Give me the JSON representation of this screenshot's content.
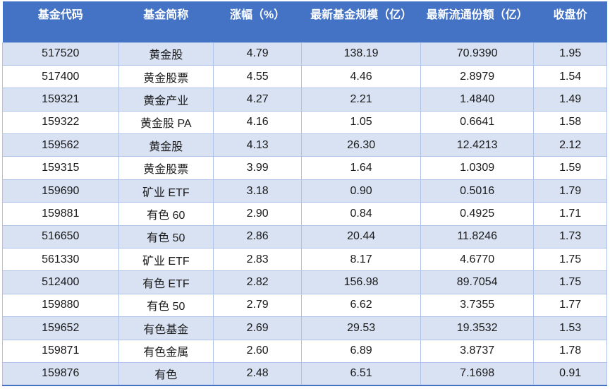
{
  "chart_data": {
    "type": "table",
    "columns": [
      "基金代码",
      "基金简称",
      "涨幅（%）",
      "最新基金规模（亿）",
      "最新流通份额（亿）",
      "收盘价"
    ],
    "rows": [
      [
        "517520",
        "黄金股",
        "4.79",
        "138.19",
        "70.9390",
        "1.95"
      ],
      [
        "517400",
        "黄金股票",
        "4.55",
        "4.46",
        "2.8979",
        "1.54"
      ],
      [
        "159321",
        "黄金产业",
        "4.27",
        "2.21",
        "1.4840",
        "1.49"
      ],
      [
        "159322",
        "黄金股 PA",
        "4.16",
        "1.05",
        "0.6641",
        "1.58"
      ],
      [
        "159562",
        "黄金股",
        "4.13",
        "26.30",
        "12.4213",
        "2.12"
      ],
      [
        "159315",
        "黄金股票",
        "3.99",
        "1.64",
        "1.0309",
        "1.59"
      ],
      [
        "159690",
        "矿业 ETF",
        "3.18",
        "0.90",
        "0.5016",
        "1.79"
      ],
      [
        "159881",
        "有色 60",
        "2.90",
        "0.84",
        "0.4925",
        "1.71"
      ],
      [
        "516650",
        "有色 50",
        "2.86",
        "20.44",
        "11.8246",
        "1.73"
      ],
      [
        "561330",
        "矿业 ETF",
        "2.83",
        "8.17",
        "4.6770",
        "1.75"
      ],
      [
        "512400",
        "有色 ETF",
        "2.82",
        "156.98",
        "89.7054",
        "1.75"
      ],
      [
        "159880",
        "有色 50",
        "2.79",
        "6.62",
        "3.7355",
        "1.77"
      ],
      [
        "159652",
        "有色基金",
        "2.69",
        "29.53",
        "19.3532",
        "1.53"
      ],
      [
        "159871",
        "有色金属",
        "2.60",
        "6.89",
        "3.8737",
        "1.78"
      ],
      [
        "159876",
        "有色",
        "2.48",
        "6.51",
        "7.1698",
        "0.91"
      ]
    ]
  },
  "colors": {
    "header_bg": "#4472C4",
    "header_text": "#FFFFFF",
    "row_alt_bg": "#D9E2F3",
    "row_bg": "#FFFFFF",
    "border": "#AEC3E7",
    "bottom_border": "#4472C4",
    "body_text": "#1A1A1A"
  }
}
